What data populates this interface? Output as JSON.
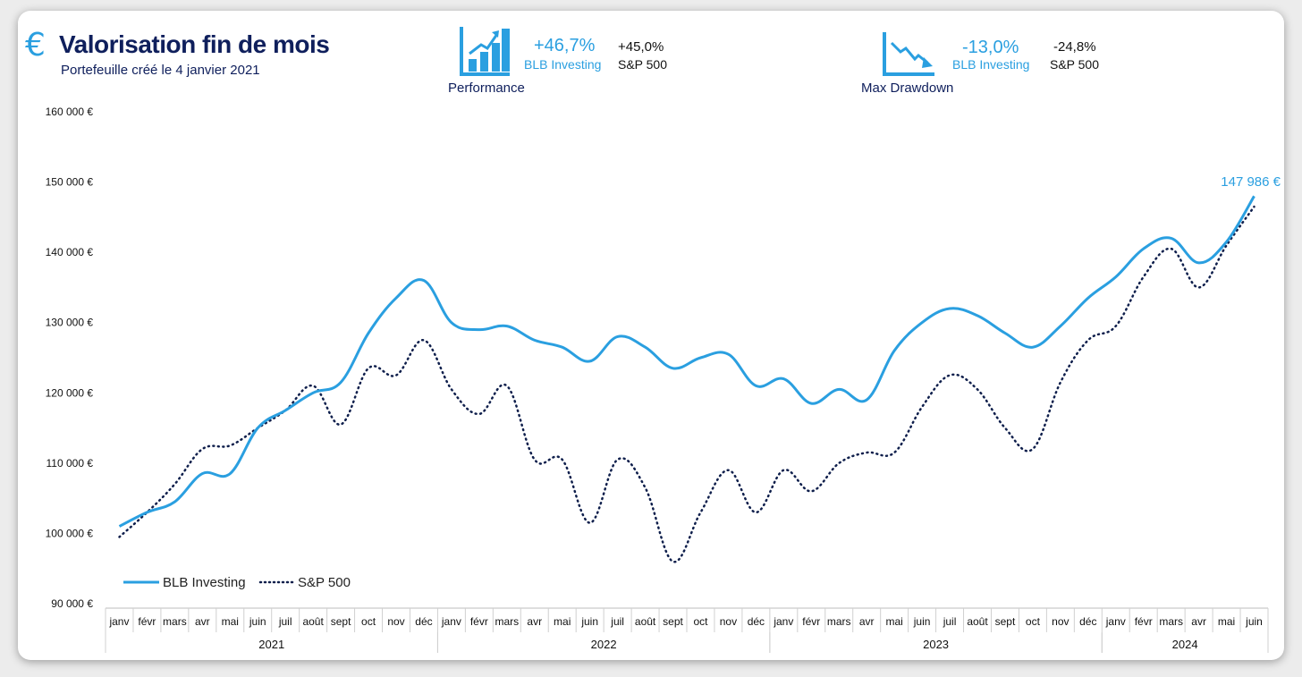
{
  "header": {
    "title": "Valorisation fin de mois",
    "subtitle": "Portefeuille créé le 4 janvier 2021"
  },
  "kpis": {
    "performance": {
      "caption": "Performance",
      "main_value": "+46,7%",
      "main_label": "BLB Investing",
      "compare_value": "+45,0%",
      "compare_label": "S&P 500"
    },
    "drawdown": {
      "caption": "Max Drawdown",
      "main_value": "-13,0%",
      "main_label": "BLB Investing",
      "compare_value": "-24,8%",
      "compare_label": "S&P 500"
    }
  },
  "colors": {
    "accent": "#2a9fe0",
    "navy": "#0f1f5c",
    "sp500": "#0f1f4c"
  },
  "chart_data": {
    "type": "line",
    "title": "Valorisation fin de mois",
    "ylim": [
      90000,
      160000
    ],
    "yticks": [
      90000,
      100000,
      110000,
      120000,
      130000,
      140000,
      150000,
      160000
    ],
    "ytick_labels": [
      "90 000 €",
      "100 000 €",
      "110 000 €",
      "120 000 €",
      "130 000 €",
      "140 000 €",
      "150 000 €",
      "160 000 €"
    ],
    "categories": [
      "janv",
      "févr",
      "mars",
      "avr",
      "mai",
      "juin",
      "juil",
      "août",
      "sept",
      "oct",
      "nov",
      "déc",
      "janv",
      "févr",
      "mars",
      "avr",
      "mai",
      "juin",
      "juil",
      "août",
      "sept",
      "oct",
      "nov",
      "déc",
      "janv",
      "févr",
      "mars",
      "avr",
      "mai",
      "juin",
      "juil",
      "août",
      "sept",
      "oct",
      "nov",
      "déc",
      "janv",
      "févr",
      "mars",
      "avr",
      "mai",
      "juin"
    ],
    "years": [
      {
        "label": "2021",
        "start": 0,
        "end": 11
      },
      {
        "label": "2022",
        "start": 12,
        "end": 23
      },
      {
        "label": "2023",
        "start": 24,
        "end": 35
      },
      {
        "label": "2024",
        "start": 36,
        "end": 41
      }
    ],
    "series": [
      {
        "name": "BLB Investing",
        "style": "solid",
        "values": [
          101000,
          103000,
          104500,
          108500,
          108500,
          115000,
          117500,
          120000,
          121500,
          128500,
          133500,
          136000,
          130000,
          129000,
          129500,
          127500,
          126500,
          124500,
          128000,
          126500,
          123500,
          125000,
          125500,
          121000,
          122000,
          118500,
          120500,
          119000,
          126000,
          130000,
          132000,
          131000,
          128500,
          126500,
          129500,
          133500,
          136500,
          140500,
          142000,
          138500,
          141500,
          148000
        ]
      },
      {
        "name": "S&P 500",
        "style": "dotted",
        "values": [
          99500,
          103000,
          107000,
          112000,
          112500,
          115000,
          117500,
          121000,
          115500,
          123500,
          122500,
          127500,
          120500,
          117000,
          121000,
          110500,
          110500,
          101500,
          110500,
          106500,
          96000,
          103000,
          109000,
          103000,
          109000,
          106000,
          110000,
          111500,
          111500,
          118000,
          122500,
          120500,
          115000,
          112000,
          121500,
          127500,
          129500,
          136500,
          140500,
          135000,
          141000,
          146500
        ]
      }
    ],
    "end_label": "147 986 €",
    "legend": {
      "position": "bottom-left",
      "entries": [
        "BLB Investing",
        "S&P 500"
      ]
    },
    "grid": false
  }
}
